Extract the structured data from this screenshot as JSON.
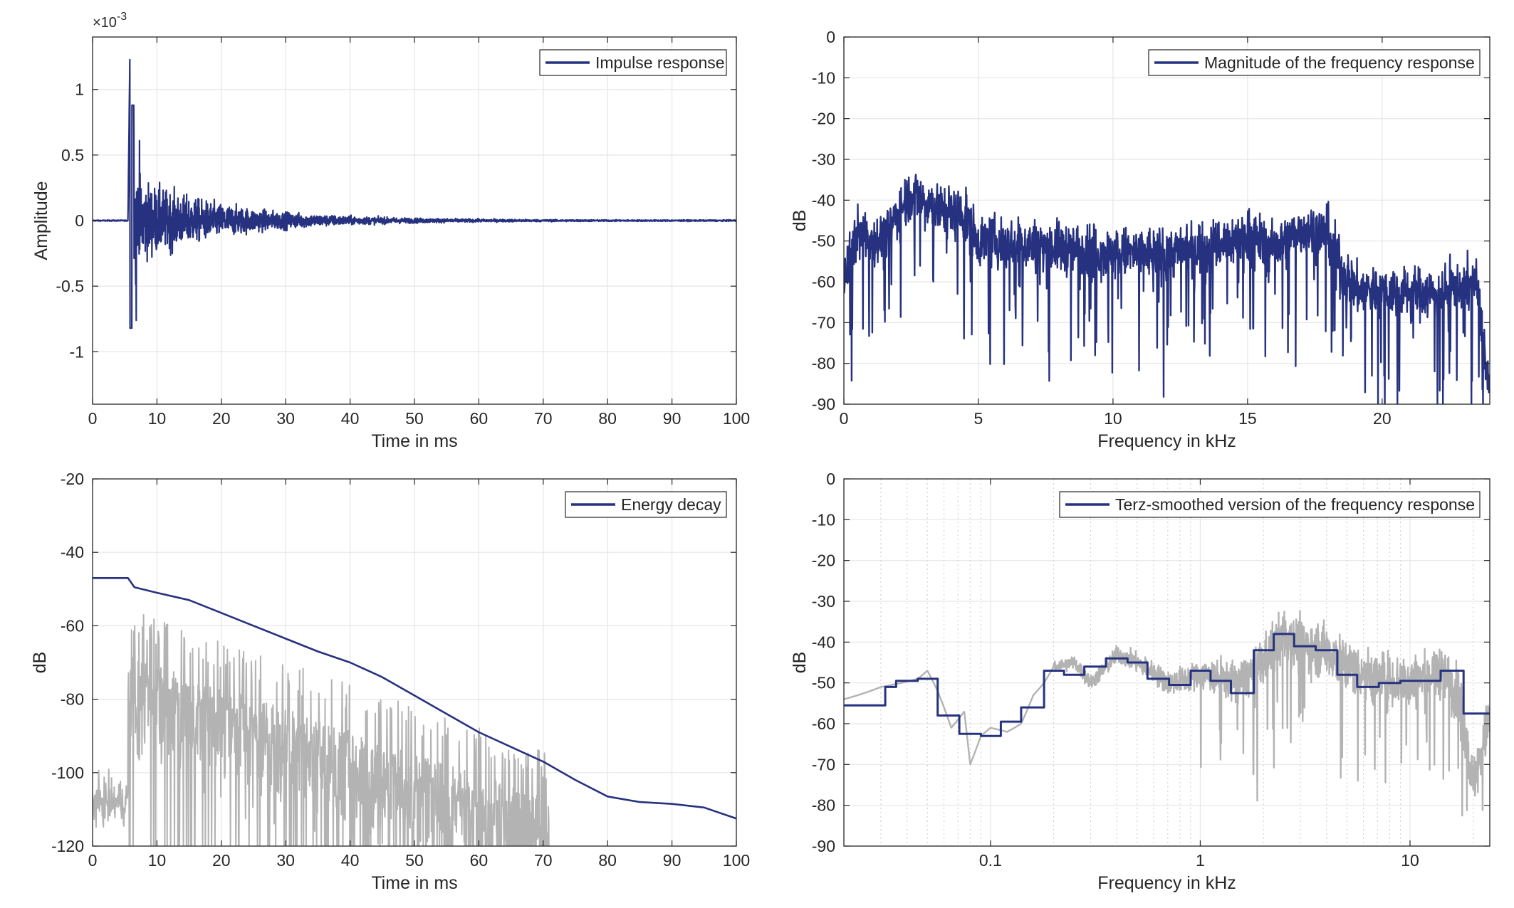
{
  "colors": {
    "primary": "#26327f",
    "secondary": "#b3b3b3",
    "grid": "#e6e6e6",
    "axis": "#262626",
    "background": "#ffffff"
  },
  "chart_data": [
    {
      "type": "line",
      "id": "impulse",
      "xlabel": "Time in ms",
      "ylabel": "Amplitude",
      "exponent": "×10-3",
      "xlim": [
        0,
        100
      ],
      "ylim": [
        -1.4,
        1.4
      ],
      "xticks": [
        0,
        10,
        20,
        30,
        40,
        50,
        60,
        70,
        80,
        90,
        100
      ],
      "xticklabels": [
        "0",
        "10",
        "20",
        "30",
        "40",
        "50",
        "60",
        "70",
        "80",
        "90",
        "100"
      ],
      "yticks": [
        -1,
        -0.5,
        0,
        0.5,
        1
      ],
      "yticklabels": [
        "-1",
        "-0.5",
        "0",
        "0.5",
        "1"
      ],
      "grid": true,
      "legend": {
        "position": "top-right",
        "entries": [
          "Impulse response"
        ]
      },
      "series": [
        {
          "name": "Impulse response",
          "color": "primary",
          "profile": {
            "onset_ms": 5.5,
            "peak": 1.27,
            "first_negative": -0.82,
            "decay_ms": 14,
            "noise": 0.004
          }
        }
      ]
    },
    {
      "type": "line",
      "id": "magnitude",
      "xlabel": "Frequency in kHz",
      "ylabel": "dB",
      "xlim": [
        0,
        24
      ],
      "ylim": [
        -90,
        0
      ],
      "xticks": [
        0,
        5,
        10,
        15,
        20
      ],
      "xticklabels": [
        "0",
        "5",
        "10",
        "15",
        "20"
      ],
      "yticks": [
        0,
        -10,
        -20,
        -30,
        -40,
        -50,
        -60,
        -70,
        -80,
        -90
      ],
      "yticklabels": [
        "0",
        "-10",
        "-20",
        "-30",
        "-40",
        "-50",
        "-60",
        "-70",
        "-80",
        "-90"
      ],
      "grid": true,
      "legend": {
        "position": "top-right",
        "entries": [
          "Magnitude of the frequency response"
        ]
      },
      "series": [
        {
          "name": "Magnitude of the frequency response",
          "color": "primary",
          "envelope": {
            "x": [
              0,
              0.5,
              1.5,
              2,
              2.5,
              3.5,
              4.5,
              5,
              7,
              10,
              12,
              14.5,
              15,
              16,
              17,
              18,
              18.5,
              19,
              20,
              22,
              23.5,
              24
            ],
            "y": [
              -60,
              -48,
              -50,
              -43,
              -38,
              -42,
              -44,
              -50,
              -51,
              -53,
              -53,
              -50,
              -48,
              -52,
              -47,
              -48,
              -57,
              -62,
              -62,
              -63,
              -60,
              -88
            ]
          },
          "spread": 7
        }
      ]
    },
    {
      "type": "line",
      "id": "energy",
      "xlabel": "Time in ms",
      "ylabel": "dB",
      "xlim": [
        0,
        100
      ],
      "ylim": [
        -120,
        -20
      ],
      "xticks": [
        0,
        10,
        20,
        30,
        40,
        50,
        60,
        70,
        80,
        90,
        100
      ],
      "xticklabels": [
        "0",
        "10",
        "20",
        "30",
        "40",
        "50",
        "60",
        "70",
        "80",
        "90",
        "100"
      ],
      "yticks": [
        -20,
        -40,
        -60,
        -80,
        -100,
        -120
      ],
      "yticklabels": [
        "-20",
        "-40",
        "-60",
        "-80",
        "-100",
        "-120"
      ],
      "grid": true,
      "legend": {
        "position": "top-right",
        "entries": [
          "Energy decay"
        ]
      },
      "series": [
        {
          "name": "Energy decay",
          "color": "primary",
          "x": [
            0,
            5.5,
            6.5,
            10,
            15,
            20,
            25,
            30,
            35,
            40,
            45,
            50,
            55,
            60,
            65,
            70,
            75,
            80,
            85,
            90,
            95,
            100
          ],
          "y": [
            -47,
            -47,
            -49.5,
            -51,
            -53,
            -56.5,
            -60,
            -63.5,
            -67,
            -70,
            -74,
            -79,
            -84,
            -89,
            -93,
            -97,
            -102,
            -106.5,
            -108,
            -108.5,
            -109.5,
            -112.5
          ]
        },
        {
          "name": "",
          "color": "secondary",
          "profile": {
            "noise_floor": -108,
            "onset_ms": 5.5,
            "peak_db": -58,
            "cutoff_ms": 71
          }
        }
      ]
    },
    {
      "type": "line",
      "id": "terz",
      "xlabel": "Frequency in kHz",
      "ylabel": "dB",
      "xscale": "log",
      "xlim": [
        0.02,
        24
      ],
      "ylim": [
        -90,
        0
      ],
      "xticks": [
        0.1,
        1,
        10
      ],
      "xticklabels": [
        "0.1",
        "1",
        "10"
      ],
      "yticks": [
        0,
        -10,
        -20,
        -30,
        -40,
        -50,
        -60,
        -70,
        -80,
        -90
      ],
      "yticklabels": [
        "0",
        "-10",
        "-20",
        "-30",
        "-40",
        "-50",
        "-60",
        "-70",
        "-80",
        "-90"
      ],
      "grid": true,
      "legend": {
        "position": "top-right",
        "entries": [
          "Terz-smoothed version of the frequency response"
        ]
      },
      "series": [
        {
          "name": "Terz-smoothed version of the frequency response",
          "color": "primary",
          "bands": [
            {
              "lo": 0.02,
              "hi": 0.0315,
              "y": -55.5
            },
            {
              "lo": 0.0315,
              "hi": 0.0355,
              "y": -51
            },
            {
              "lo": 0.0355,
              "hi": 0.045,
              "y": -49.5
            },
            {
              "lo": 0.045,
              "hi": 0.056,
              "y": -49
            },
            {
              "lo": 0.056,
              "hi": 0.071,
              "y": -58
            },
            {
              "lo": 0.071,
              "hi": 0.09,
              "y": -62.5
            },
            {
              "lo": 0.09,
              "hi": 0.112,
              "y": -63
            },
            {
              "lo": 0.112,
              "hi": 0.14,
              "y": -59.5
            },
            {
              "lo": 0.14,
              "hi": 0.18,
              "y": -56
            },
            {
              "lo": 0.18,
              "hi": 0.224,
              "y": -47
            },
            {
              "lo": 0.224,
              "hi": 0.28,
              "y": -48
            },
            {
              "lo": 0.28,
              "hi": 0.355,
              "y": -46
            },
            {
              "lo": 0.355,
              "hi": 0.45,
              "y": -44
            },
            {
              "lo": 0.45,
              "hi": 0.56,
              "y": -45
            },
            {
              "lo": 0.56,
              "hi": 0.71,
              "y": -49
            },
            {
              "lo": 0.71,
              "hi": 0.9,
              "y": -50.5
            },
            {
              "lo": 0.9,
              "hi": 1.12,
              "y": -47
            },
            {
              "lo": 1.12,
              "hi": 1.4,
              "y": -49.5
            },
            {
              "lo": 1.4,
              "hi": 1.8,
              "y": -52.5
            },
            {
              "lo": 1.8,
              "hi": 2.24,
              "y": -42
            },
            {
              "lo": 2.24,
              "hi": 2.8,
              "y": -38
            },
            {
              "lo": 2.8,
              "hi": 3.55,
              "y": -41
            },
            {
              "lo": 3.55,
              "hi": 4.5,
              "y": -42
            },
            {
              "lo": 4.5,
              "hi": 5.6,
              "y": -48
            },
            {
              "lo": 5.6,
              "hi": 7.1,
              "y": -51
            },
            {
              "lo": 7.1,
              "hi": 9,
              "y": -50
            },
            {
              "lo": 9,
              "hi": 11.2,
              "y": -49.5
            },
            {
              "lo": 11.2,
              "hi": 14,
              "y": -49.5
            },
            {
              "lo": 14,
              "hi": 18,
              "y": -47
            },
            {
              "lo": 18,
              "hi": 24,
              "y": -57.5
            }
          ]
        },
        {
          "name": "",
          "color": "secondary",
          "envelope": {
            "x": [
              0.02,
              0.03,
              0.045,
              0.05,
              0.056,
              0.065,
              0.075,
              0.08,
              0.09,
              0.1,
              0.12,
              0.14,
              0.16,
              0.18,
              0.2,
              0.25,
              0.3,
              0.4,
              0.5,
              0.7,
              1,
              1.5,
              2,
              2.5,
              3,
              4,
              5,
              7,
              10,
              14,
              17,
              20,
              24
            ],
            "y": [
              -54,
              -51,
              -49,
              -47,
              -52,
              -61,
              -57,
              -70,
              -63,
              -61,
              -62,
              -60,
              -53,
              -50,
              -46,
              -45,
              -50,
              -43,
              -45,
              -50,
              -48,
              -50,
              -45,
              -38,
              -41,
              -42,
              -46,
              -49,
              -50,
              -47,
              -53,
              -75,
              -58
            ]
          },
          "spread_hf": 8
        }
      ]
    }
  ]
}
